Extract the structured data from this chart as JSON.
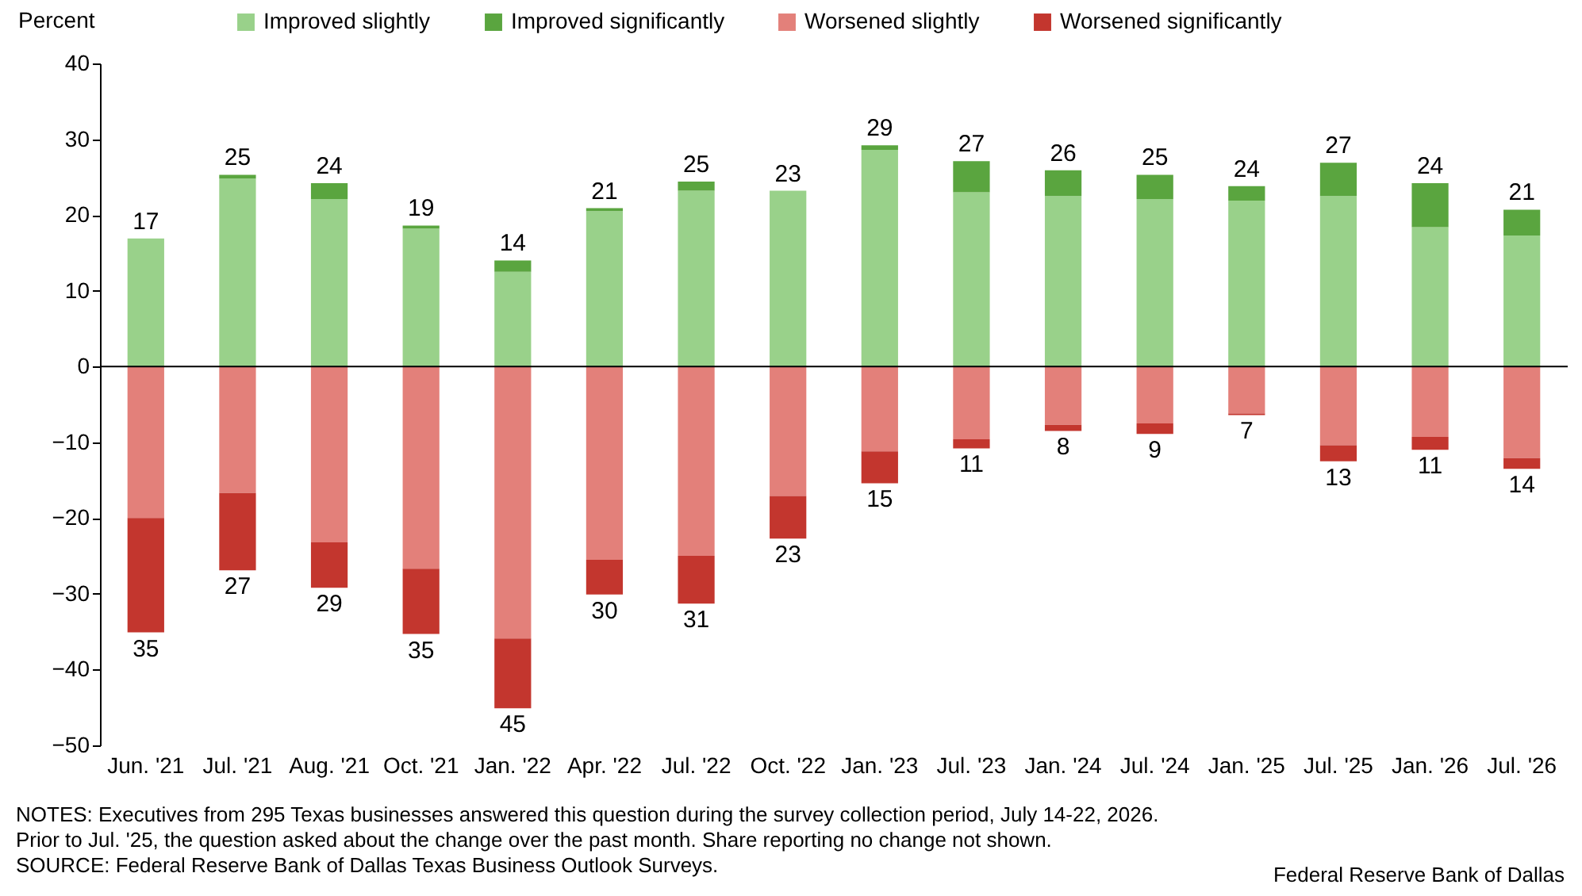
{
  "chart_data": {
    "type": "bar",
    "stacked": true,
    "ylabel": "Percent",
    "categories": [
      "Jun. '21",
      "Jul. '21",
      "Aug. '21",
      "Oct. '21",
      "Jan. '22",
      "Apr. '22",
      "Jul. '22",
      "Oct. '22",
      "Jan. '23",
      "Jul. '23",
      "Jan. '24",
      "Jul. '24",
      "Jan. '25",
      "Jul. '25",
      "Jan. '26",
      "Jul. '26"
    ],
    "series": [
      {
        "name": "Improved slightly",
        "color": "#99d18a",
        "values": [
          16.9,
          24.8,
          22.1,
          18.2,
          12.5,
          20.5,
          23.2,
          23.2,
          28.6,
          23.0,
          22.5,
          22.1,
          21.9,
          22.5,
          18.4,
          17.3
        ]
      },
      {
        "name": "Improved significantly",
        "color": "#5aa53f",
        "values": [
          0,
          0.5,
          2.1,
          0.4,
          1.5,
          0.4,
          1.2,
          0,
          0.6,
          4.1,
          3.4,
          3.2,
          1.9,
          4.4,
          5.8,
          3.4
        ]
      },
      {
        "name": "Worsened slightly",
        "color": "#e3807a",
        "values": [
          -20.0,
          -16.7,
          -23.2,
          -26.7,
          -35.9,
          -25.5,
          -25.0,
          -17.1,
          -11.2,
          -9.6,
          -7.7,
          -7.5,
          -6.2,
          -10.4,
          -9.3,
          -12.1
        ]
      },
      {
        "name": "Worsened significantly",
        "color": "#c3362e",
        "values": [
          -15.1,
          -10.2,
          -6.0,
          -8.6,
          -9.2,
          -4.6,
          -6.3,
          -5.6,
          -4.2,
          -1.2,
          -0.8,
          -1.4,
          -0.2,
          -2.1,
          -1.7,
          -1.4
        ]
      }
    ],
    "totals": [
      [
        "17",
        "35"
      ],
      [
        "25",
        "27"
      ],
      [
        "24",
        "29"
      ],
      [
        "19",
        "35"
      ],
      [
        "14",
        "45"
      ],
      [
        "21",
        "30"
      ],
      [
        "25",
        "31"
      ],
      [
        "23",
        "23"
      ],
      [
        "29",
        "15"
      ],
      [
        "27",
        "11"
      ],
      [
        "26",
        "8"
      ],
      [
        "25",
        "9"
      ],
      [
        "24",
        "7"
      ],
      [
        "27",
        "13"
      ],
      [
        "24",
        "11"
      ],
      [
        "21",
        "14"
      ]
    ],
    "ylim": [
      -50,
      40
    ],
    "yticks": [
      -50,
      -40,
      -30,
      -20,
      -10,
      0,
      10,
      20,
      30,
      40
    ],
    "legend": "top",
    "annotations": [
      "NOTES: Executives from 295 Texas businesses answered this question during the survey collection period, July 14-22, 2026. Prior to Jul. '25, the question asked about the change over the past month. Share reporting no change not shown.",
      "SOURCE: Federal Reserve Bank of Dallas Texas Business Outlook Surveys.",
      "Federal Reserve Bank of Dallas"
    ]
  }
}
